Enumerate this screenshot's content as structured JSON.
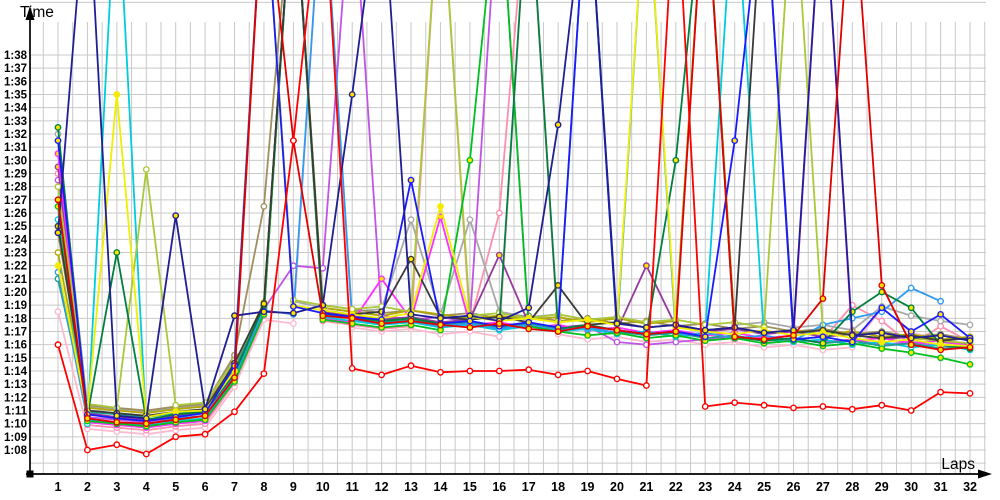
{
  "chart_data": {
    "type": "line",
    "title": "",
    "xlabel": "Laps",
    "ylabel": "Time",
    "x": [
      1,
      2,
      3,
      4,
      5,
      6,
      7,
      8,
      9,
      10,
      11,
      12,
      13,
      14,
      15,
      16,
      17,
      18,
      19,
      20,
      21,
      22,
      23,
      24,
      25,
      26,
      27,
      28,
      29,
      30,
      31,
      32
    ],
    "x_ticks": [
      "1",
      "2",
      "3",
      "4",
      "5",
      "6",
      "7",
      "8",
      "9",
      "10",
      "11",
      "12",
      "13",
      "14",
      "15",
      "16",
      "17",
      "18",
      "19",
      "20",
      "21",
      "22",
      "23",
      "24",
      "25",
      "26",
      "27",
      "28",
      "29",
      "30",
      "31",
      "32"
    ],
    "y_ticks": [
      "1:08",
      "1:09",
      "1:10",
      "1:11",
      "1:12",
      "1:13",
      "1:14",
      "1:15",
      "1:16",
      "1:17",
      "1:18",
      "1:19",
      "1:20",
      "1:21",
      "1:22",
      "1:23",
      "1:24",
      "1:25",
      "1:26",
      "1:27",
      "1:28",
      "1:29",
      "1:30",
      "1:31",
      "1:32",
      "1:33",
      "1:34",
      "1:35",
      "1:36",
      "1:37",
      "1:38"
    ],
    "ylim": [
      "1:08",
      "1:38"
    ],
    "grid": true,
    "legend": false,
    "units": "lap time min:sec (values stored as seconds; values above 98 run off the top of the plot, e.g. pit-stop laps)",
    "series": [
      {
        "name": "lightpink",
        "color": "#ffb9cf",
        "marker": "#ffffff",
        "values": [
          78.5,
          69.6,
          69.4,
          69.2,
          69.5,
          69.7,
          72.8,
          77.9,
          77.6,
          112,
          77.3,
          77.0,
          77.2,
          76.8,
          77.0,
          76.6,
          112,
          76.8,
          76.4,
          76.6,
          76.2,
          76.4,
          76.0,
          76.2,
          75.8,
          76.0,
          75.6,
          75.8,
          78.8,
          76.9,
          76.4,
          75.6
        ]
      },
      {
        "name": "pink",
        "color": "#ff8fae",
        "marker": "#ffffff",
        "values": [
          89.0,
          69.9,
          69.7,
          69.5,
          69.8,
          70.0,
          73.1,
          78.2,
          112,
          77.8,
          77.5,
          77.2,
          77.4,
          112,
          77.6,
          86.0,
          112,
          77.0,
          77.2,
          76.8,
          77.0,
          76.6,
          76.8,
          76.4,
          76.6,
          76.2,
          76.4,
          79.0,
          77.8,
          76.0,
          77.4,
          76.2
        ]
      },
      {
        "name": "gray",
        "color": "#a8a8a8",
        "marker": "#ffffff",
        "values": [
          92.0,
          71.3,
          71.1,
          70.9,
          71.2,
          71.4,
          75.0,
          112,
          79.3,
          78.8,
          78.5,
          78.7,
          85.5,
          78.3,
          85.5,
          78.5,
          78.1,
          78.3,
          77.9,
          78.1,
          77.7,
          77.9,
          112,
          77.5,
          77.7,
          77.3,
          77.5,
          77.1,
          78.9,
          78.2,
          77.8,
          77.5
        ]
      },
      {
        "name": "khaki",
        "color": "#9e905e",
        "marker": "#ffffff",
        "values": [
          84.5,
          71.4,
          71.2,
          71.0,
          71.3,
          71.5,
          75.2,
          86.5,
          112,
          79.0,
          78.7,
          78.4,
          78.6,
          78.2,
          78.4,
          78.0,
          78.2,
          77.8,
          78.0,
          77.6,
          77.8,
          77.4,
          77.6,
          77.2,
          77.4,
          77.0,
          77.2,
          76.8,
          77.0,
          76.6,
          76.8,
          76.4
        ]
      },
      {
        "name": "olive",
        "color": "#b3a800",
        "marker": "#ffffff",
        "values": [
          83.0,
          71.2,
          71.0,
          70.8,
          71.1,
          71.3,
          74.5,
          79.2,
          112,
          78.8,
          78.5,
          78.2,
          78.6,
          78.3,
          78.0,
          78.2,
          77.9,
          78.1,
          77.7,
          78.0,
          77.6,
          77.8,
          112,
          77.2,
          76.9,
          77.1,
          76.8,
          77.0,
          76.6,
          76.8,
          76.4,
          76.6
        ]
      },
      {
        "name": "violet",
        "color": "#c055e5",
        "marker": "#ffffff",
        "values": [
          88.5,
          70.5,
          70.3,
          70.1,
          70.4,
          70.6,
          73.7,
          78.7,
          82.0,
          81.8,
          112,
          78.2,
          77.9,
          78.1,
          77.7,
          112,
          77.5,
          77.2,
          77.4,
          76.2,
          76.0,
          76.2,
          76.4,
          76.6,
          76.3,
          76.4,
          76.2,
          76.4,
          76.0,
          76.2,
          75.9,
          75.8
        ]
      },
      {
        "name": "purple",
        "color": "#943a9e",
        "marker": "#ffe400",
        "values": [
          89.5,
          70.8,
          70.5,
          70.3,
          70.6,
          70.9,
          74.1,
          78.9,
          112,
          78.5,
          78.2,
          77.9,
          78.1,
          77.7,
          77.9,
          82.8,
          77.6,
          77.3,
          77.5,
          77.1,
          82.0,
          77.4,
          77.0,
          77.2,
          76.8,
          77.0,
          76.6,
          76.8,
          76.4,
          76.6,
          76.2,
          76.0
        ]
      },
      {
        "name": "magenta",
        "color": "#ff30ff",
        "marker": "#ffe400",
        "values": [
          90.5,
          70.1,
          69.9,
          69.7,
          70.0,
          70.2,
          73.3,
          78.4,
          112,
          78.0,
          77.7,
          81.0,
          77.9,
          85.7,
          77.5,
          77.7,
          77.3,
          77.5,
          77.1,
          77.3,
          76.9,
          77.1,
          76.7,
          76.9,
          76.5,
          76.7,
          112,
          76.3,
          76.5,
          76.1,
          76.3,
          75.9
        ]
      },
      {
        "name": "cyan",
        "color": "#00ccdd",
        "marker": "#ffffff",
        "values": [
          85.5,
          70.0,
          112,
          69.8,
          70.2,
          70.4,
          73.4,
          78.5,
          112,
          78.1,
          77.8,
          77.5,
          77.7,
          77.3,
          77.5,
          77.1,
          77.4,
          77.0,
          77.2,
          76.8,
          77.0,
          76.6,
          76.8,
          112,
          76.4,
          76.2,
          76.4,
          76.0,
          76.2,
          75.8,
          76.0,
          75.6
        ]
      },
      {
        "name": "teal",
        "color": "#1e9e8e",
        "marker": "#ffffff",
        "values": [
          81.0,
          70.9,
          70.7,
          70.5,
          70.8,
          71.0,
          74.2,
          78.8,
          112,
          78.3,
          78.0,
          77.7,
          77.9,
          77.5,
          77.7,
          77.3,
          77.6,
          77.2,
          112,
          77.0,
          76.7,
          76.9,
          76.5,
          76.7,
          76.3,
          76.5,
          76.1,
          76.3,
          75.9,
          76.1,
          75.7,
          75.9
        ]
      },
      {
        "name": "skyblue",
        "color": "#2e9bf0",
        "marker": "#ffffff",
        "values": [
          81.5,
          70.3,
          70.1,
          69.9,
          70.4,
          70.6,
          73.6,
          78.6,
          78.3,
          112,
          77.9,
          77.6,
          77.8,
          77.4,
          77.6,
          77.2,
          77.5,
          77.1,
          77.3,
          76.9,
          112,
          76.7,
          76.9,
          76.5,
          76.7,
          76.3,
          77.5,
          78.0,
          78.5,
          80.3,
          79.3,
          null
        ]
      },
      {
        "name": "lightgreen",
        "color": "#a9c938",
        "marker": "#ffffff",
        "values": [
          88.0,
          71.5,
          71.2,
          89.3,
          71.4,
          71.6,
          74.8,
          112,
          79.4,
          79.0,
          78.7,
          78.9,
          78.5,
          112,
          78.2,
          78.4,
          78.0,
          78.3,
          77.9,
          78.1,
          77.7,
          77.9,
          77.5,
          77.7,
          77.3,
          112,
          77.0,
          76.7,
          76.9,
          76.5,
          76.3,
          76.1
        ]
      },
      {
        "name": "green",
        "color": "#00c020",
        "marker": "#ffe400",
        "values": [
          86.5,
          70.2,
          70.0,
          69.8,
          70.1,
          70.3,
          73.2,
          78.3,
          112,
          77.9,
          77.6,
          77.3,
          77.5,
          77.1,
          90.0,
          112,
          77.4,
          77.0,
          76.7,
          76.9,
          76.5,
          76.7,
          76.3,
          76.5,
          76.1,
          76.3,
          75.9,
          76.1,
          75.7,
          75.4,
          75.0,
          74.5
        ]
      },
      {
        "name": "darkgreen",
        "color": "#008040",
        "marker": "#ffe400",
        "values": [
          92.5,
          70.6,
          83.0,
          70.3,
          70.7,
          70.9,
          73.8,
          79.0,
          112,
          78.4,
          78.1,
          77.8,
          78.0,
          77.6,
          77.8,
          77.4,
          112,
          77.2,
          77.5,
          77.1,
          76.8,
          90.0,
          112,
          76.6,
          76.3,
          76.5,
          76.1,
          78.5,
          80.0,
          78.8,
          76.0,
          75.7
        ]
      },
      {
        "name": "black",
        "color": "#3a3a3a",
        "marker": "#ffe400",
        "values": [
          85.0,
          71.0,
          70.8,
          70.6,
          70.9,
          71.1,
          74.6,
          79.1,
          112,
          78.6,
          78.3,
          78.5,
          82.5,
          78.1,
          77.9,
          78.1,
          77.7,
          80.5,
          77.5,
          77.7,
          77.3,
          77.5,
          77.1,
          77.3,
          112,
          76.9,
          77.1,
          76.7,
          76.5,
          76.7,
          76.3,
          76.5
        ]
      },
      {
        "name": "yellow",
        "color": "#efef00",
        "marker": "#ffe400",
        "values": [
          82.0,
          70.8,
          95.0,
          70.5,
          70.9,
          71.0,
          74.0,
          112,
          79.0,
          78.6,
          78.3,
          78.0,
          78.4,
          86.5,
          78.1,
          77.8,
          78.0,
          77.7,
          77.9,
          77.5,
          112,
          77.3,
          77.0,
          76.8,
          77.1,
          76.7,
          76.9,
          76.5,
          76.2,
          76.4,
          76.0,
          75.9
        ]
      },
      {
        "name": "blue",
        "color": "#1a1aff",
        "marker": "#ffe400",
        "values": [
          91.5,
          70.7,
          70.4,
          70.2,
          70.5,
          70.8,
          74.4,
          112,
          78.9,
          78.4,
          78.1,
          77.9,
          88.5,
          77.6,
          77.8,
          77.4,
          77.7,
          77.3,
          112,
          77.1,
          76.8,
          77.0,
          76.6,
          91.5,
          112,
          76.4,
          76.6,
          76.2,
          78.8,
          77.0,
          78.3,
          76.5
        ]
      },
      {
        "name": "navy",
        "color": "#1f1f93",
        "marker": "#ffe400",
        "values": [
          84.5,
          112,
          70.6,
          70.4,
          85.8,
          71.1,
          78.2,
          78.5,
          78.4,
          79.0,
          95.0,
          112,
          78.3,
          78.0,
          78.2,
          77.8,
          78.8,
          92.7,
          112,
          77.6,
          77.3,
          77.5,
          77.1,
          77.3,
          76.9,
          77.1,
          112,
          76.7,
          76.9,
          76.5,
          76.7,
          76.3
        ]
      },
      {
        "name": "red-2",
        "color": "#e00000",
        "marker": "#ffe400",
        "values": [
          87.0,
          70.4,
          70.1,
          70.0,
          70.3,
          70.6,
          73.5,
          112,
          91.5,
          78.2,
          78.0,
          77.6,
          77.8,
          77.5,
          77.3,
          77.6,
          77.2,
          77.0,
          77.4,
          77.1,
          76.8,
          77.0,
          112,
          76.6,
          76.4,
          76.7,
          79.5,
          112,
          80.5,
          76.0,
          75.6,
          75.8
        ]
      },
      {
        "name": "red-1",
        "color": "#ff0000",
        "marker": "#ffffff",
        "values": [
          76.0,
          68.0,
          68.4,
          67.7,
          69.0,
          69.2,
          70.9,
          73.8,
          91.5,
          112,
          74.2,
          73.7,
          74.4,
          73.9,
          74.0,
          74.0,
          74.1,
          73.7,
          74.0,
          73.4,
          72.9,
          112,
          71.3,
          71.6,
          71.4,
          71.2,
          71.3,
          71.1,
          71.4,
          71.0,
          72.4,
          72.3
        ]
      }
    ]
  }
}
